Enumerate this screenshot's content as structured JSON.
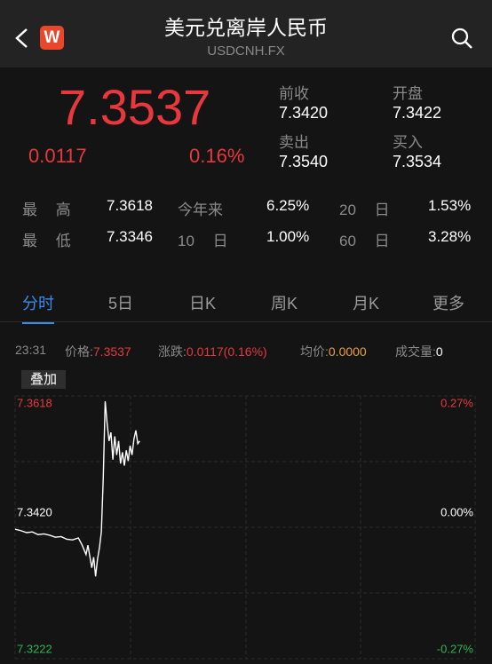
{
  "header": {
    "title": "美元兑离岸人民币",
    "subtitle": "USDCNH.FX",
    "logo": "W"
  },
  "quote": {
    "price": "7.3537",
    "change": "0.0117",
    "change_pct": "0.16%",
    "fields": [
      {
        "label": "前收",
        "value": "7.3420"
      },
      {
        "label": "开盘",
        "value": "7.3422"
      },
      {
        "label": "卖出",
        "value": "7.3540"
      },
      {
        "label": "买入",
        "value": "7.3534"
      }
    ]
  },
  "stats": {
    "rows": [
      [
        "最 高",
        "7.3618",
        "今年来",
        "6.25%",
        "20 日",
        "1.53%"
      ],
      [
        "最 低",
        "7.3346",
        "10 日",
        "1.00%",
        "60 日",
        "3.28%"
      ]
    ]
  },
  "tabs": [
    "分时",
    "5日",
    "日K",
    "周K",
    "月K",
    "更多"
  ],
  "active_tab": 0,
  "info": {
    "time": "23:31",
    "items": [
      {
        "label": "价格:",
        "value": "7.3537",
        "color": "#e8383d"
      },
      {
        "label": "涨跌:",
        "value": "0.0117(0.16%)",
        "color": "#e8383d"
      },
      {
        "label": "均价:",
        "value": "0.0000",
        "color": "#e8a03a"
      },
      {
        "label": "成交量:",
        "value": "0",
        "color": "#ffffff"
      }
    ]
  },
  "overlay_button": "叠加",
  "chart_data": {
    "type": "line",
    "x": [
      0,
      3,
      6,
      9,
      12,
      15,
      18,
      21,
      24,
      27,
      30,
      33,
      35,
      37,
      38,
      40,
      41,
      42,
      43,
      44,
      45,
      46,
      47,
      48,
      49,
      50,
      51,
      52,
      53,
      54,
      55,
      56,
      57,
      58,
      59,
      60,
      61,
      62,
      63,
      64,
      65
    ],
    "series": [
      {
        "color": "#ffffff",
        "values": [
          7.3417,
          7.3415,
          7.3412,
          7.3413,
          7.3409,
          7.341,
          7.3408,
          7.3405,
          7.3406,
          7.3402,
          7.3401,
          7.3404,
          7.3393,
          7.3379,
          7.3393,
          7.3359,
          7.3375,
          7.3346,
          7.3372,
          7.3389,
          7.3413,
          7.3495,
          7.361,
          7.3577,
          7.355,
          7.3563,
          7.3522,
          7.3557,
          7.3529,
          7.355,
          7.3516,
          7.3533,
          7.3513,
          7.3536,
          7.352,
          7.3543,
          7.3529,
          7.3553,
          7.3566,
          7.3546,
          7.355
        ]
      }
    ],
    "xlim": [
      0,
      240
    ],
    "ylim": [
      7.3222,
      7.3618
    ],
    "yticks": [
      7.3618,
      {
        "value": 7.342,
        "label": "7.3420"
      },
      7.3222
    ],
    "y2lim": [
      -0.27,
      0.27
    ],
    "y2ticks": [
      {
        "value": 0.27,
        "label": "0.27%"
      },
      {
        "value": 0,
        "label": "0.00%"
      },
      {
        "value": -0.27,
        "label": "-0.27%"
      }
    ],
    "tick_colors": [
      "#e8383d",
      "#ffffff",
      "#2fb352"
    ],
    "grid": true
  }
}
